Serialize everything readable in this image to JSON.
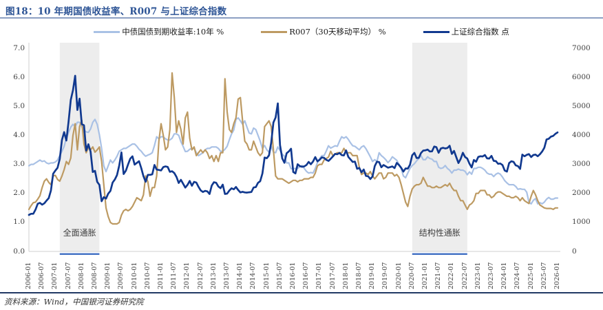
{
  "figure": {
    "title": "图18：10 年期国债收益率、R007 与上证综合指数",
    "source": "资料来源：Wind，中国银河证券研究院"
  },
  "colors": {
    "title_blue": "#2E5596",
    "title_rule": "#8C9FC3",
    "footer_rule": "#203864",
    "axis_line": "#CFCFCF",
    "band_fill": "#EDEDED",
    "band_underline": "#4472C4"
  },
  "legend": [
    {
      "label": "中债国债到期收益率:10年 %",
      "color": "#A9C1E5"
    },
    {
      "label": "R007（30天移动平均） %",
      "color": "#BD9A62"
    },
    {
      "label": "上证综合指数 点",
      "color": "#11398F"
    }
  ],
  "axes": {
    "left_ticks": [
      "7.0",
      "6.0",
      "5.0",
      "4.0",
      "3.0",
      "2.0",
      "1.0",
      "0.0"
    ],
    "right_ticks": [
      "7000",
      "6000",
      "5000",
      "4000",
      "3000",
      "2000",
      "1000",
      "0"
    ],
    "left_range": [
      0,
      7
    ],
    "right_range": [
      0,
      7000
    ],
    "x_ticks": [
      "2006-01",
      "2006-07",
      "2007-01",
      "2007-07",
      "2008-01",
      "2008-07",
      "2009-01",
      "2009-07",
      "2010-01",
      "2010-07",
      "2011-01",
      "2011-07",
      "2012-01",
      "2012-07",
      "2013-01",
      "2013-07",
      "2014-01",
      "2014-07",
      "2015-01",
      "2015-07",
      "2016-01",
      "2016-07",
      "2017-01",
      "2017-07",
      "2018-01",
      "2018-07",
      "2019-01",
      "2019-07",
      "2020-01",
      "2020-07",
      "2021-01",
      "2021-07",
      "2022-01",
      "2022-07",
      "2023-01",
      "2023-07",
      "2024-01",
      "2024-07",
      "2025-01",
      "2025-07",
      "2026-01"
    ]
  },
  "bands": [
    {
      "label": "全面通胀",
      "from": "2007-03",
      "to": "2008-09"
    },
    {
      "label": "结构性通胀",
      "from": "2020-07",
      "to": "2022-08"
    }
  ],
  "chart_data": {
    "type": "line",
    "title": "10 年期国债收益率、R007 与上证综合指数",
    "x_start": "2006-01",
    "x_end": "2026-01",
    "frequency": "monthly",
    "legend_position": "top",
    "grid": false,
    "ylim_left": [
      0,
      7
    ],
    "ylim_right": [
      0,
      7000
    ],
    "series": [
      {
        "name": "中债国债到期收益率:10年 %",
        "axis": "left",
        "color": "#A9C1E5",
        "values": [
          2.95,
          3.0,
          3.0,
          3.05,
          3.1,
          3.15,
          3.1,
          3.12,
          3.05,
          3.02,
          3.05,
          3.05,
          3.08,
          3.15,
          3.3,
          3.45,
          3.62,
          3.9,
          4.1,
          4.28,
          4.38,
          4.3,
          4.45,
          4.45,
          4.3,
          4.18,
          4.12,
          4.1,
          4.22,
          4.45,
          4.55,
          4.38,
          4.02,
          3.55,
          2.95,
          2.75,
          2.95,
          3.15,
          3.05,
          3.15,
          3.28,
          3.45,
          3.5,
          3.55,
          3.55,
          3.6,
          3.65,
          3.7,
          3.7,
          3.62,
          3.52,
          3.45,
          3.35,
          3.28,
          3.32,
          3.35,
          3.4,
          3.65,
          3.95,
          3.88,
          3.95,
          3.95,
          3.88,
          3.84,
          3.84,
          3.9,
          4.05,
          4.05,
          4.0,
          3.78,
          3.62,
          3.44,
          3.45,
          3.52,
          3.55,
          3.55,
          3.4,
          3.3,
          3.35,
          3.4,
          3.5,
          3.55,
          3.55,
          3.6,
          3.6,
          3.6,
          3.55,
          3.45,
          3.45,
          3.52,
          3.62,
          3.85,
          4.05,
          4.18,
          4.55,
          4.6,
          4.5,
          4.38,
          4.5,
          4.28,
          4.08,
          4.05,
          4.25,
          4.2,
          4.0,
          3.8,
          3.55,
          3.65,
          3.5,
          3.42,
          3.62,
          3.42,
          3.4,
          3.6,
          3.48,
          3.35,
          3.28,
          3.05,
          3.05,
          2.85,
          2.85,
          2.86,
          2.86,
          2.92,
          2.96,
          2.86,
          2.76,
          2.7,
          2.72,
          2.7,
          2.86,
          3.06,
          3.2,
          3.3,
          3.3,
          3.46,
          3.64,
          3.56,
          3.6,
          3.64,
          3.62,
          3.8,
          3.95,
          3.9,
          3.95,
          3.86,
          3.74,
          3.64,
          3.62,
          3.56,
          3.5,
          3.6,
          3.64,
          3.54,
          3.4,
          3.26,
          3.1,
          3.16,
          3.1,
          3.4,
          3.3,
          3.24,
          3.16,
          3.06,
          3.14,
          3.26,
          3.2,
          3.14,
          3.0,
          2.86,
          2.6,
          2.54,
          2.7,
          2.86,
          2.96,
          3.02,
          3.12,
          3.2,
          3.3,
          3.16,
          3.16,
          3.26,
          3.2,
          3.18,
          3.1,
          3.1,
          2.9,
          2.86,
          2.88,
          2.96,
          2.86,
          2.8,
          2.7,
          2.8,
          2.8,
          2.84,
          2.8,
          2.8,
          2.76,
          2.64,
          2.74,
          2.66,
          2.86,
          2.86,
          2.9,
          2.9,
          2.86,
          2.8,
          2.7,
          2.66,
          2.66,
          2.58,
          2.66,
          2.7,
          2.66,
          2.56,
          2.44,
          2.36,
          2.3,
          2.3,
          2.3,
          2.24,
          2.14,
          2.16,
          2.14,
          2.14,
          2.04,
          1.7,
          1.64,
          1.76,
          1.82,
          1.64,
          1.68,
          1.64,
          1.7,
          1.8,
          1.86,
          1.8,
          1.8,
          1.84,
          1.84
        ]
      },
      {
        "name": "R007（30天移动平均） %",
        "axis": "left",
        "color": "#BD9A62",
        "values": [
          1.45,
          1.58,
          1.68,
          1.7,
          1.8,
          1.92,
          2.2,
          2.42,
          2.5,
          2.38,
          2.3,
          2.6,
          2.62,
          2.48,
          2.42,
          2.6,
          2.82,
          3.1,
          3.0,
          3.22,
          4.0,
          4.4,
          3.5,
          4.3,
          4.52,
          3.7,
          3.4,
          3.58,
          3.5,
          3.6,
          3.42,
          3.5,
          3.6,
          3.1,
          2.3,
          1.5,
          1.2,
          1.0,
          0.95,
          0.95,
          0.95,
          1.0,
          1.25,
          1.4,
          1.45,
          1.4,
          1.45,
          1.55,
          1.7,
          1.85,
          1.8,
          1.75,
          1.95,
          2.6,
          2.4,
          1.9,
          2.2,
          2.2,
          2.6,
          3.8,
          4.4,
          4.0,
          3.5,
          3.6,
          4.2,
          6.15,
          5.3,
          4.1,
          4.5,
          4.2,
          3.7,
          4.6,
          4.8,
          3.9,
          3.5,
          3.6,
          3.3,
          3.4,
          3.5,
          3.4,
          3.5,
          3.4,
          3.2,
          3.3,
          3.1,
          3.3,
          3.1,
          3.4,
          3.4,
          5.95,
          4.8,
          4.2,
          4.1,
          4.4,
          4.6,
          5.25,
          5.3,
          4.5,
          3.8,
          3.7,
          3.5,
          3.5,
          3.8,
          3.6,
          3.4,
          3.3,
          3.4,
          4.3,
          4.4,
          4.5,
          4.3,
          3.5,
          2.6,
          2.5,
          2.5,
          2.5,
          2.45,
          2.4,
          2.35,
          2.4,
          2.45,
          2.45,
          2.4,
          2.45,
          2.45,
          2.5,
          2.5,
          2.5,
          2.55,
          2.55,
          2.7,
          2.95,
          3.0,
          3.0,
          3.15,
          3.2,
          3.25,
          3.45,
          3.3,
          3.35,
          3.4,
          3.4,
          3.4,
          3.55,
          3.4,
          3.4,
          3.4,
          3.3,
          3.3,
          3.3,
          2.9,
          2.65,
          2.7,
          2.7,
          2.65,
          2.75,
          2.6,
          2.5,
          2.6,
          2.7,
          2.7,
          2.5,
          2.55,
          2.7,
          2.7,
          2.7,
          2.6,
          2.65,
          2.55,
          2.3,
          2.0,
          1.7,
          1.55,
          1.9,
          2.15,
          2.25,
          2.3,
          2.3,
          2.35,
          2.55,
          2.4,
          2.25,
          2.25,
          2.2,
          2.2,
          2.25,
          2.2,
          2.2,
          2.25,
          2.3,
          2.25,
          2.35,
          2.2,
          2.1,
          2.1,
          1.9,
          1.75,
          1.75,
          1.6,
          1.45,
          1.6,
          1.65,
          1.75,
          2.0,
          2.0,
          2.1,
          2.1,
          2.1,
          1.95,
          1.95,
          1.85,
          1.9,
          2.0,
          2.05,
          2.05,
          2.0,
          1.95,
          1.9,
          1.9,
          1.85,
          1.85,
          1.9,
          1.85,
          1.75,
          1.85,
          1.75,
          1.7,
          1.65,
          1.9,
          2.1,
          1.95,
          1.75,
          1.6,
          1.55,
          1.5,
          1.48,
          1.48,
          1.48,
          1.45,
          1.5,
          1.5
        ]
      },
      {
        "name": "上证综合指数 点",
        "axis": "right",
        "color": "#11398F",
        "values": [
          1258,
          1299,
          1298,
          1440,
          1641,
          1672,
          1612,
          1658,
          1752,
          1837,
          2099,
          2675,
          2786,
          2881,
          3184,
          3841,
          4109,
          3820,
          4471,
          5218,
          5552,
          6050,
          4871,
          5262,
          4383,
          4348,
          3473,
          3693,
          3433,
          2736,
          2776,
          2397,
          2294,
          1729,
          1871,
          1821,
          1991,
          2083,
          2373,
          2478,
          2632,
          2959,
          3412,
          2668,
          2779,
          2995,
          3195,
          3277,
          2989,
          3052,
          3109,
          2871,
          2592,
          2398,
          2638,
          2639,
          2656,
          2979,
          2820,
          2808,
          2790,
          2905,
          2928,
          2911,
          2743,
          2762,
          2701,
          2567,
          2359,
          2468,
          2333,
          2199,
          2293,
          2428,
          2263,
          2396,
          2372,
          2225,
          2103,
          2047,
          2086,
          2068,
          1980,
          2269,
          2385,
          2366,
          2237,
          2178,
          2301,
          1979,
          1994,
          2098,
          2175,
          2141,
          2220,
          2116,
          2033,
          2056,
          2033,
          2026,
          2039,
          2048,
          2202,
          2217,
          2364,
          2420,
          2683,
          3235,
          3210,
          3310,
          3748,
          4442,
          4612,
          5100,
          3664,
          3206,
          3053,
          3383,
          3445,
          3539,
          2738,
          2688,
          3004,
          2938,
          2917,
          2930,
          2979,
          3085,
          3005,
          3100,
          3250,
          3104,
          3159,
          3242,
          3223,
          3155,
          3117,
          3192,
          3273,
          3361,
          3349,
          3393,
          3317,
          3307,
          3481,
          3259,
          3169,
          3082,
          3095,
          2847,
          2876,
          2725,
          2821,
          2603,
          2588,
          2494,
          2585,
          2941,
          3091,
          3078,
          2899,
          2979,
          2933,
          2886,
          2905,
          2929,
          2872,
          3050,
          2977,
          2880,
          2750,
          2860,
          2852,
          2985,
          3310,
          3396,
          3218,
          3225,
          3392,
          3473,
          3483,
          3509,
          3442,
          3447,
          3615,
          3591,
          3397,
          3544,
          3568,
          3547,
          3564,
          3640,
          3361,
          3462,
          3252,
          3047,
          3186,
          3399,
          3253,
          3202,
          3024,
          2893,
          3151,
          3089,
          3256,
          3280,
          3273,
          3323,
          3205,
          3202,
          3291,
          3120,
          3110,
          3019,
          3030,
          2975,
          2789,
          2750,
          3041,
          3105,
          3087,
          2967,
          2939,
          2842,
          3336,
          3280,
          3326,
          3352,
          3251,
          3321,
          3336,
          3279,
          3347,
          3444,
          3573,
          3858,
          3883,
          3955,
          3980,
          4050,
          4100
        ]
      }
    ]
  }
}
